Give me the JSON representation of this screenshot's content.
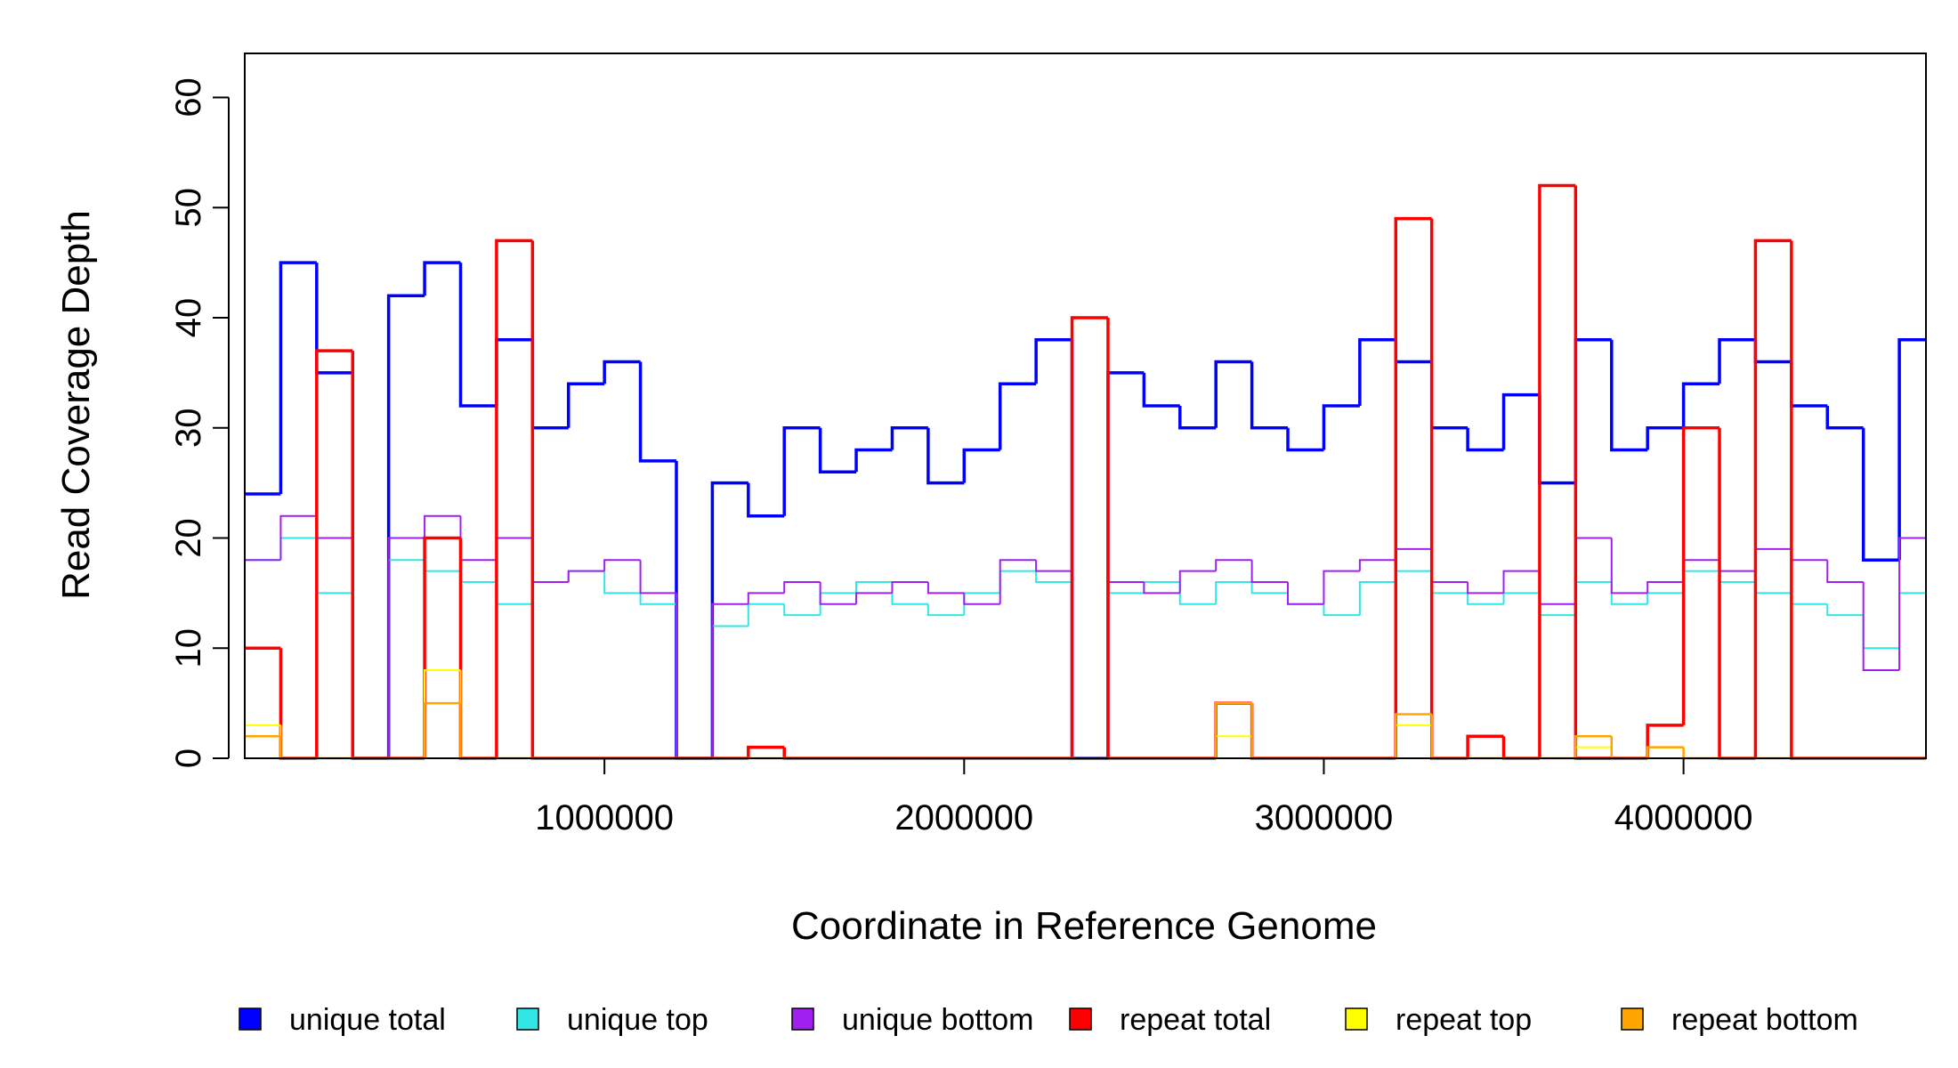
{
  "chart_data": {
    "type": "step",
    "xlabel": "Coordinate in Reference Genome",
    "ylabel": "Read Coverage Depth",
    "xlim": [
      0,
      4674000
    ],
    "ylim": [
      0,
      64
    ],
    "xticks": [
      1000000,
      2000000,
      3000000,
      4000000
    ],
    "yticks": [
      0,
      10,
      20,
      30,
      40,
      50,
      60
    ],
    "x": [
      0,
      100000,
      200000,
      300000,
      400000,
      500000,
      600000,
      700000,
      800000,
      900000,
      1000000,
      1100000,
      1200000,
      1300000,
      1400000,
      1500000,
      1600000,
      1700000,
      1800000,
      1900000,
      2000000,
      2100000,
      2200000,
      2300000,
      2400000,
      2500000,
      2600000,
      2700000,
      2800000,
      2900000,
      3000000,
      3100000,
      3200000,
      3300000,
      3400000,
      3500000,
      3600000,
      3700000,
      3800000,
      3900000,
      4000000,
      4100000,
      4200000,
      4300000,
      4400000,
      4500000,
      4600000
    ],
    "series": [
      {
        "name": "unique total",
        "color": "#0000ff",
        "width": 3.5,
        "values": [
          24,
          45,
          35,
          0,
          42,
          45,
          32,
          38,
          30,
          34,
          36,
          27,
          0,
          25,
          22,
          30,
          26,
          28,
          30,
          25,
          28,
          34,
          38,
          0,
          35,
          32,
          30,
          36,
          30,
          28,
          32,
          38,
          36,
          30,
          28,
          33,
          25,
          38,
          28,
          30,
          34,
          38,
          36,
          32,
          30,
          18,
          38
        ]
      },
      {
        "name": "unique top",
        "color": "#33e6e6",
        "width": 2,
        "values": [
          18,
          20,
          15,
          0,
          18,
          17,
          16,
          14,
          16,
          17,
          15,
          14,
          0,
          12,
          14,
          13,
          15,
          16,
          14,
          13,
          15,
          17,
          16,
          0,
          15,
          16,
          14,
          16,
          15,
          14,
          13,
          16,
          17,
          15,
          14,
          15,
          13,
          16,
          14,
          15,
          17,
          16,
          15,
          14,
          13,
          10,
          15
        ]
      },
      {
        "name": "unique bottom",
        "color": "#a020f0",
        "width": 2,
        "values": [
          18,
          22,
          20,
          0,
          20,
          22,
          18,
          20,
          16,
          17,
          18,
          15,
          0,
          14,
          15,
          16,
          14,
          15,
          16,
          15,
          14,
          18,
          17,
          0,
          16,
          15,
          17,
          18,
          16,
          14,
          17,
          18,
          19,
          16,
          15,
          17,
          14,
          20,
          15,
          16,
          18,
          17,
          19,
          18,
          16,
          8,
          20
        ]
      },
      {
        "name": "repeat total",
        "color": "#ff0000",
        "width": 3.5,
        "values": [
          10,
          0,
          37,
          0,
          0,
          20,
          0,
          47,
          0,
          0,
          0,
          0,
          0,
          0,
          1,
          0,
          0,
          0,
          0,
          0,
          0,
          0,
          0,
          40,
          0,
          0,
          0,
          5,
          0,
          0,
          0,
          0,
          49,
          0,
          2,
          0,
          52,
          0,
          0,
          3,
          30,
          0,
          47,
          0,
          0,
          0,
          0
        ]
      },
      {
        "name": "repeat top",
        "color": "#ffff00",
        "width": 2,
        "values": [
          3,
          0,
          0,
          0,
          0,
          8,
          0,
          0,
          0,
          0,
          0,
          0,
          0,
          0,
          0,
          0,
          0,
          0,
          0,
          0,
          0,
          0,
          0,
          0,
          0,
          0,
          0,
          2,
          0,
          0,
          0,
          0,
          3,
          0,
          0,
          0,
          0,
          1,
          0,
          1,
          0,
          0,
          0,
          0,
          0,
          0,
          0
        ]
      },
      {
        "name": "repeat bottom",
        "color": "#ffa500",
        "width": 2.5,
        "values": [
          2,
          0,
          0,
          0,
          0,
          5,
          0,
          0,
          0,
          0,
          0,
          0,
          0,
          0,
          0,
          0,
          0,
          0,
          0,
          0,
          0,
          0,
          0,
          0,
          0,
          0,
          0,
          5,
          0,
          0,
          0,
          0,
          4,
          0,
          0,
          0,
          0,
          2,
          0,
          1,
          0,
          0,
          0,
          0,
          0,
          0,
          0
        ]
      }
    ]
  }
}
